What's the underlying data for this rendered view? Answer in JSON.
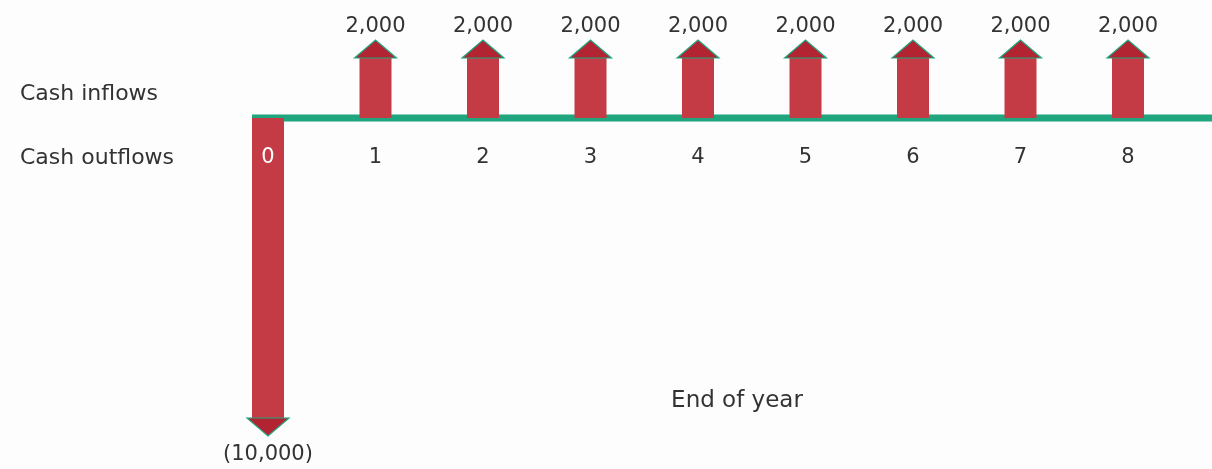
{
  "chart_data": {
    "type": "bar",
    "xlabel": "End of year",
    "annotations": [
      "Cash inflows",
      "Cash outflows"
    ],
    "categories": [
      "0",
      "1",
      "2",
      "3",
      "4",
      "5",
      "6",
      "7",
      "8"
    ],
    "values": [
      -10000,
      2000,
      2000,
      2000,
      2000,
      2000,
      2000,
      2000,
      2000
    ],
    "value_labels": [
      "(10,000)",
      "2,000",
      "2,000",
      "2,000",
      "2,000",
      "2,000",
      "2,000",
      "2,000",
      "2,000"
    ],
    "color": "#c43b45"
  }
}
